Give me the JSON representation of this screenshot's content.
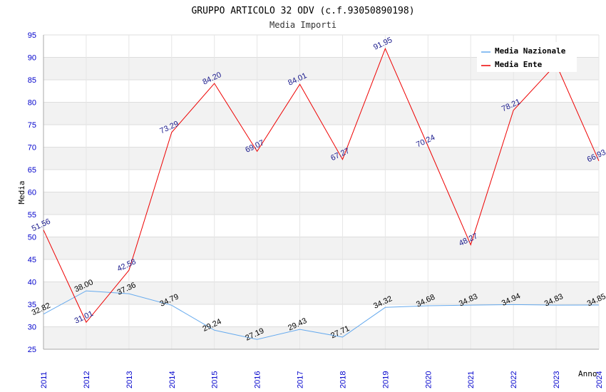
{
  "chart_data": {
    "type": "line",
    "title": "GRUPPO ARTICOLO 32 ODV (c.f.93050890198)",
    "subtitle": "Media Importi",
    "xlabel": "Anno",
    "ylabel": "Media",
    "ylim": [
      25,
      95
    ],
    "yticks": [
      25,
      30,
      35,
      40,
      45,
      50,
      55,
      60,
      65,
      70,
      75,
      80,
      85,
      90,
      95
    ],
    "categories": [
      "2011",
      "2012",
      "2013",
      "2014",
      "2015",
      "2016",
      "2017",
      "2018",
      "2019",
      "2020",
      "2021",
      "2022",
      "2023",
      "2024"
    ],
    "grid": true,
    "legend_position": "top-right",
    "series": [
      {
        "name": "Media Nazionale",
        "color": "#66aaee",
        "values": [
          32.82,
          38.0,
          37.36,
          34.79,
          29.24,
          27.19,
          29.43,
          27.71,
          34.32,
          34.68,
          34.83,
          34.94,
          34.83,
          34.85
        ],
        "labels": [
          "32.82",
          "38.00",
          "37.36",
          "34.79",
          "29.24",
          "27.19",
          "29.43",
          "27.71",
          "34.32",
          "34.68",
          "34.83",
          "34.94",
          "34.83",
          "34.85"
        ]
      },
      {
        "name": "Media Ente",
        "color": "#ee0000",
        "values": [
          51.56,
          31.01,
          42.58,
          73.29,
          84.2,
          69.07,
          84.01,
          67.27,
          91.95,
          70.24,
          48.27,
          78.21,
          88.5,
          66.93
        ],
        "labels": [
          "51.56",
          "31.01",
          "42.58",
          "73.29",
          "84.20",
          "69.07",
          "84.01",
          "67.27",
          "91.95",
          "70.24",
          "48.27",
          "78.21",
          "",
          "66.93"
        ]
      }
    ]
  }
}
